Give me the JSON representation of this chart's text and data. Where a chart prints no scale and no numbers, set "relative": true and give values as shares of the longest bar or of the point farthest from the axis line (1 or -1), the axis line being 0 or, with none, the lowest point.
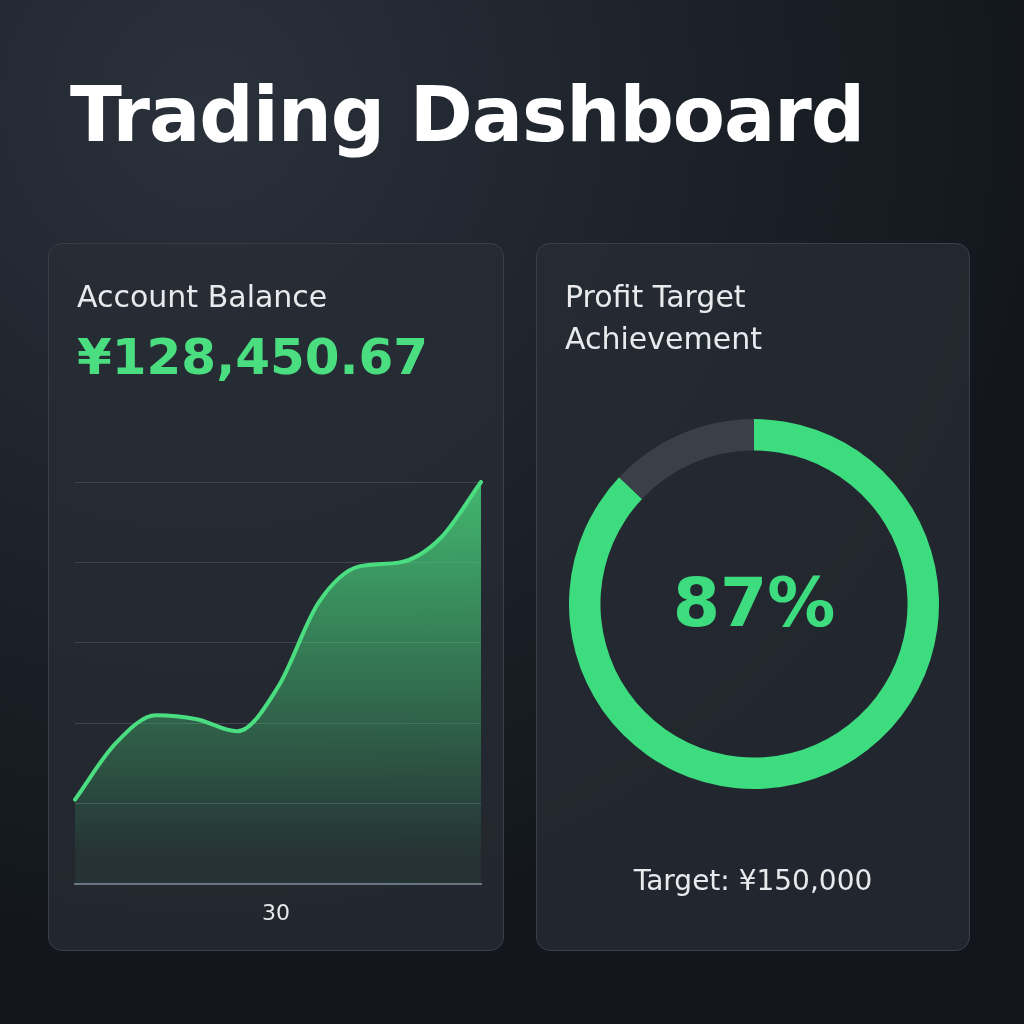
{
  "chart_data": [
    {
      "type": "other",
      "title": "Trading Dashboard"
    },
    {
      "type": "area",
      "title": "Account Balance",
      "subtitle": "¥128,450.67",
      "categories": [
        null,
        null,
        null,
        null,
        null,
        null,
        null,
        null,
        null,
        null,
        null
      ],
      "values": [
        0.21,
        0.35,
        0.42,
        0.41,
        0.38,
        0.49,
        0.7,
        0.79,
        0.8,
        0.86,
        1
      ],
      "color": "#4ade80",
      "relative": true,
      "grid": "y",
      "annotations": [
        "30"
      ]
    },
    {
      "type": "donut",
      "title": "Profit Target Achievement",
      "categories": [
        null,
        null
      ],
      "values": [
        87,
        13
      ],
      "colors": [
        "#3ddc7e",
        "#3a3f48"
      ],
      "value_labels": [
        "87%",
        null
      ],
      "annotations": [
        "Target: ¥150,000"
      ]
    }
  ]
}
